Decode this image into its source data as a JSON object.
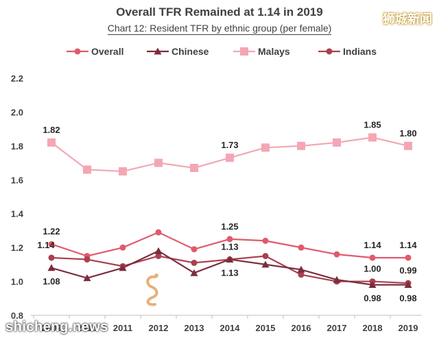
{
  "chart_data": {
    "type": "line",
    "title": "Overall TFR Remained at 1.14 in 2019",
    "subtitle": "Chart 12: Resident TFR by ethnic group (per female)",
    "x": [
      "2009",
      "2010",
      "2011",
      "2012",
      "2013",
      "2014",
      "2015",
      "2016",
      "2017",
      "2018",
      "2019"
    ],
    "ylim": [
      0.8,
      2.2
    ],
    "yticks": [
      "0.8",
      "1.0",
      "1.2",
      "1.4",
      "1.6",
      "1.8",
      "2.0",
      "2.2"
    ],
    "grid": false,
    "legend_position": "top",
    "series": [
      {
        "name": "Overall",
        "color": "#e05a6b",
        "marker": "circle",
        "values": [
          1.22,
          1.15,
          1.2,
          1.29,
          1.19,
          1.25,
          1.24,
          1.2,
          1.16,
          1.14,
          1.14
        ]
      },
      {
        "name": "Chinese",
        "color": "#7b2d3c",
        "marker": "triangle",
        "values": [
          1.08,
          1.02,
          1.08,
          1.18,
          1.05,
          1.13,
          1.1,
          1.07,
          1.01,
          0.98,
          0.98
        ]
      },
      {
        "name": "Malays",
        "color": "#f4a6b4",
        "marker": "square",
        "values": [
          1.82,
          1.66,
          1.65,
          1.7,
          1.67,
          1.73,
          1.79,
          1.8,
          1.82,
          1.85,
          1.8
        ]
      },
      {
        "name": "Indians",
        "color": "#a8404f",
        "marker": "circle",
        "values": [
          1.14,
          1.13,
          1.09,
          1.15,
          1.11,
          1.13,
          1.15,
          1.04,
          1.0,
          1.0,
          0.99
        ]
      }
    ],
    "data_labels": [
      {
        "series": "Malays",
        "x": "2009",
        "text": "1.82",
        "pos": "above"
      },
      {
        "series": "Malays",
        "x": "2014",
        "text": "1.73",
        "pos": "above"
      },
      {
        "series": "Malays",
        "x": "2018",
        "text": "1.85",
        "pos": "above"
      },
      {
        "series": "Malays",
        "x": "2019",
        "text": "1.80",
        "pos": "above"
      },
      {
        "series": "Overall",
        "x": "2009",
        "text": "1.22",
        "pos": "above"
      },
      {
        "series": "Overall",
        "x": "2014",
        "text": "1.25",
        "pos": "above"
      },
      {
        "series": "Overall",
        "x": "2018",
        "text": "1.14",
        "pos": "above"
      },
      {
        "series": "Overall",
        "x": "2019",
        "text": "1.14",
        "pos": "above"
      },
      {
        "series": "Indians",
        "x": "2009",
        "text": "1.14",
        "pos": "aboveleft"
      },
      {
        "series": "Indians",
        "x": "2014",
        "text": "1.13",
        "pos": "above"
      },
      {
        "series": "Indians",
        "x": "2018",
        "text": "1.00",
        "pos": "above"
      },
      {
        "series": "Indians",
        "x": "2019",
        "text": "0.99",
        "pos": "above"
      },
      {
        "series": "Chinese",
        "x": "2009",
        "text": "1.08",
        "pos": "below"
      },
      {
        "series": "Chinese",
        "x": "2014",
        "text": "1.13",
        "pos": "below"
      },
      {
        "series": "Chinese",
        "x": "2018",
        "text": "0.98",
        "pos": "below"
      },
      {
        "series": "Chinese",
        "x": "2019",
        "text": "0.98",
        "pos": "below"
      }
    ]
  },
  "watermark_cn": "狮城新闻",
  "watermark_en": "shicheng.news"
}
